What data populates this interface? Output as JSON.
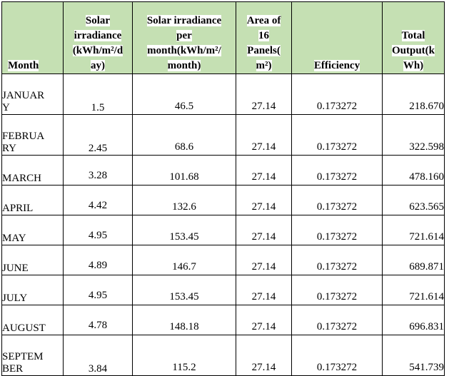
{
  "table": {
    "headers": {
      "month": "Month",
      "irr_day": [
        "Solar",
        "irradiance",
        "(kWh/m²/d",
        "ay)"
      ],
      "irr_month": [
        "Solar irradiance",
        "per",
        "month(kWh/m²/",
        "month)"
      ],
      "area": [
        "Area of",
        "16",
        "Panels(",
        "m²)"
      ],
      "efficiency": "Efficiency",
      "output": [
        "Total",
        "Output(k",
        "Wh)"
      ]
    },
    "rows": [
      {
        "month": [
          "JANUAR",
          "Y"
        ],
        "irr_day": "1.5",
        "irr_month": "46.5",
        "area": "27.14",
        "efficiency": "0.173272",
        "output": "218.670",
        "tall": true
      },
      {
        "month": [
          "FEBRUA",
          "RY"
        ],
        "irr_day": "2.45",
        "irr_month": "68.6",
        "area": "27.14",
        "efficiency": "0.173272",
        "output": "322.598",
        "tall": true
      },
      {
        "month": [
          "MARCH"
        ],
        "irr_day": "3.28",
        "irr_month": "101.68",
        "area": "27.14",
        "efficiency": "0.173272",
        "output": "478.160",
        "tall": false
      },
      {
        "month": [
          "APRIL"
        ],
        "irr_day": "4.42",
        "irr_month": "132.6",
        "area": "27.14",
        "efficiency": "0.173272",
        "output": "623.565",
        "tall": false
      },
      {
        "month": [
          "MAY"
        ],
        "irr_day": "4.95",
        "irr_month": "153.45",
        "area": "27.14",
        "efficiency": "0.173272",
        "output": "721.614",
        "tall": false
      },
      {
        "month": [
          "JUNE"
        ],
        "irr_day": "4.89",
        "irr_month": "146.7",
        "area": "27.14",
        "efficiency": "0.173272",
        "output": "689.871",
        "tall": false
      },
      {
        "month": [
          "JULY"
        ],
        "irr_day": "4.95",
        "irr_month": "153.45",
        "area": "27.14",
        "efficiency": "0.173272",
        "output": "721.614",
        "tall": false
      },
      {
        "month": [
          "AUGUST"
        ],
        "irr_day": "4.78",
        "irr_month": "148.18",
        "area": "27.14",
        "efficiency": "0.173272",
        "output": "696.831",
        "tall": false
      },
      {
        "month": [
          "SEPTEM",
          "BER"
        ],
        "irr_day": "3.84",
        "irr_month": "115.2",
        "area": "27.14",
        "efficiency": "0.173272",
        "output": "541.739",
        "tall": true
      }
    ]
  }
}
